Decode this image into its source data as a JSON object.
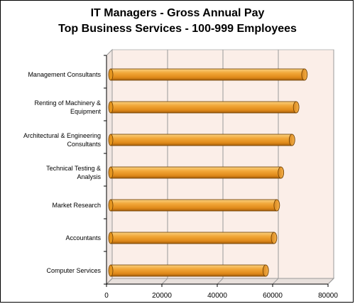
{
  "chart_data": {
    "type": "bar",
    "orientation": "horizontal",
    "title_lines": [
      "IT Managers - Gross Annual Pay",
      "Top Business Services - 100-999 Employees"
    ],
    "categories": [
      [
        "Management Consultants"
      ],
      [
        "Renting of Machinery &",
        "Equipment"
      ],
      [
        "Architectural & Engineering",
        "Consultants"
      ],
      [
        "Technical Testing &",
        "Analysis"
      ],
      [
        "Market Research"
      ],
      [
        "Accountants"
      ],
      [
        "Computer Services"
      ]
    ],
    "values": [
      71500,
      68500,
      67000,
      63000,
      61500,
      60500,
      57500
    ],
    "xlim": [
      0,
      80000
    ],
    "x_ticks": [
      0,
      20000,
      40000,
      60000,
      80000
    ],
    "x_tick_labels": [
      "0",
      "20000",
      "40000",
      "60000",
      "80000"
    ],
    "grid": true,
    "colors": {
      "bar_fill": "#f0a030",
      "bar_light": "#f8c060",
      "bar_dark": "#b06a10",
      "bar_outline": "#6a3c00",
      "plot_background": "#fbeee8",
      "gridline": "#9a9a9a"
    }
  }
}
